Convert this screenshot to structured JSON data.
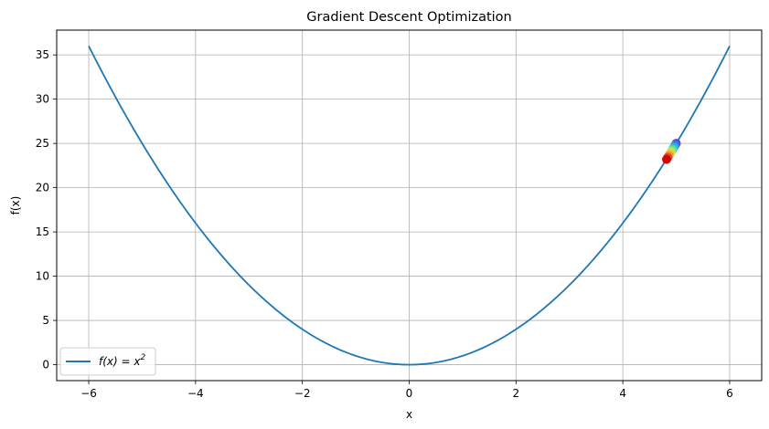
{
  "chart_data": {
    "type": "line",
    "title": "Gradient Descent Optimization",
    "xlabel": "x",
    "ylabel": "f(x)",
    "xlim": [
      -6.6,
      6.6
    ],
    "ylim": [
      -1.8,
      37.8
    ],
    "x_ticks": [
      -6,
      -4,
      -2,
      0,
      2,
      4,
      6
    ],
    "x_tick_labels": [
      "−6",
      "−4",
      "−2",
      "0",
      "2",
      "4",
      "6"
    ],
    "y_ticks": [
      0,
      5,
      10,
      15,
      20,
      25,
      30,
      35
    ],
    "y_tick_labels": [
      "0",
      "5",
      "10",
      "15",
      "20",
      "25",
      "30",
      "35"
    ],
    "grid": true,
    "legend": {
      "position": "lower-left",
      "entries": [
        {
          "label_main": "f(x) = x",
          "label_sup": "2",
          "color": "#1f77b4"
        }
      ]
    },
    "series": [
      {
        "name": "f(x) = x^2",
        "function": "x^2",
        "x_range": [
          -6,
          6
        ],
        "color": "#1f77b4"
      }
    ],
    "descent_points": [
      {
        "x": 5.0,
        "y": 25.0,
        "color": "#6a3cd8"
      },
      {
        "x": 4.98,
        "y": 24.8,
        "color": "#3f72f0"
      },
      {
        "x": 4.96,
        "y": 24.6,
        "color": "#2ca6e8"
      },
      {
        "x": 4.94,
        "y": 24.4,
        "color": "#34d3b8"
      },
      {
        "x": 4.92,
        "y": 24.2,
        "color": "#6fe785"
      },
      {
        "x": 4.9,
        "y": 24.0,
        "color": "#b8e85a"
      },
      {
        "x": 4.88,
        "y": 23.8,
        "color": "#f0c43a"
      },
      {
        "x": 4.86,
        "y": 23.6,
        "color": "#f78e2e"
      },
      {
        "x": 4.84,
        "y": 23.4,
        "color": "#e54a22"
      },
      {
        "x": 4.82,
        "y": 23.2,
        "color": "#cc0a0a"
      }
    ]
  }
}
